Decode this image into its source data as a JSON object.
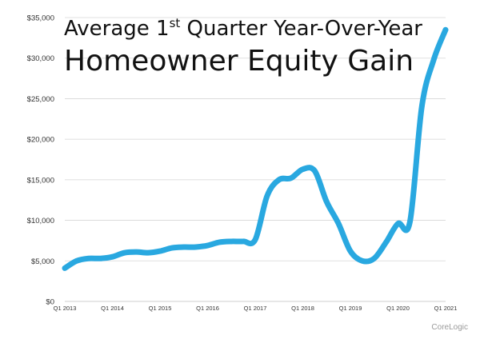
{
  "chart_data": {
    "type": "line",
    "title_prefix": "Average 1",
    "title_superscript": "st",
    "title_suffix": " Quarter Year-Over-Year",
    "subtitle": "Homeowner Equity Gain",
    "xlabel": "",
    "ylabel": "",
    "ylim": [
      0,
      35000
    ],
    "grid": true,
    "y_ticks": [
      0,
      5000,
      10000,
      15000,
      20000,
      25000,
      30000,
      35000
    ],
    "y_tick_labels": [
      "$0",
      "$5,000",
      "$10,000",
      "$15,000",
      "$20,000",
      "$25,000",
      "$30,000",
      "$35,000"
    ],
    "x_tick_labels": [
      "Q1 2013",
      "Q1 2014",
      "Q1 2015",
      "Q1 2016",
      "Q1 2017",
      "Q1 2018",
      "Q1 2019",
      "Q1 2020",
      "Q1 2021"
    ],
    "color": "#29a8e0",
    "series": [
      {
        "values": [
          [
            "2013-Q1",
            4100
          ],
          [
            "2013-Q2",
            5000
          ],
          [
            "2013-Q3",
            5300
          ],
          [
            "2013-Q4",
            5300
          ],
          [
            "2014-Q1",
            5500
          ],
          [
            "2014-Q2",
            6000
          ],
          [
            "2014-Q3",
            6100
          ],
          [
            "2014-Q4",
            6000
          ],
          [
            "2015-Q1",
            6200
          ],
          [
            "2015-Q2",
            6600
          ],
          [
            "2015-Q3",
            6700
          ],
          [
            "2015-Q4",
            6700
          ],
          [
            "2016-Q1",
            6900
          ],
          [
            "2016-Q2",
            7300
          ],
          [
            "2016-Q3",
            7400
          ],
          [
            "2016-Q4",
            7400
          ],
          [
            "2017-Q1",
            7600
          ],
          [
            "2017-Q2",
            13000
          ],
          [
            "2017-Q3",
            15000
          ],
          [
            "2017-Q4",
            15200
          ],
          [
            "2018-Q1",
            16300
          ],
          [
            "2018-Q2",
            16100
          ],
          [
            "2018-Q3",
            12300
          ],
          [
            "2018-Q4",
            9600
          ],
          [
            "2019-Q1",
            6200
          ],
          [
            "2019-Q2",
            5000
          ],
          [
            "2019-Q3",
            5300
          ],
          [
            "2019-Q4",
            7300
          ],
          [
            "2020-Q1",
            9600
          ],
          [
            "2020-Q2",
            9800
          ],
          [
            "2020-Q3",
            24000
          ],
          [
            "2020-Q4",
            29800
          ],
          [
            "2021-Q1",
            33500
          ]
        ]
      }
    ],
    "source": "CoreLogic"
  }
}
